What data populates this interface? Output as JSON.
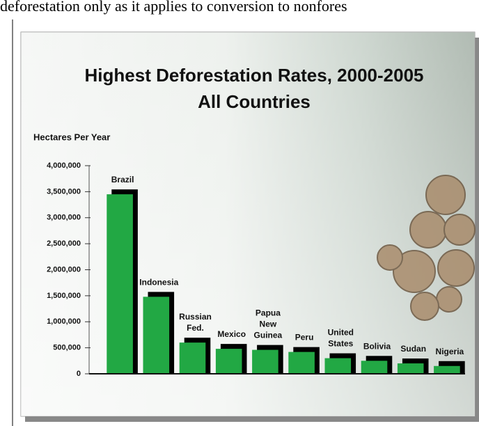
{
  "document": {
    "text_line": "deforestation only as it applies to conversion to nonfores"
  },
  "chart_data": {
    "type": "bar",
    "title": "Highest Deforestation Rates, 2000-2005",
    "subtitle": "All Countries",
    "y_label": "Hectares Per Year",
    "categories": [
      "Brazil",
      "Indonesia",
      "Russian Fed.",
      "Mexico",
      "Papua New Guinea",
      "Peru",
      "United States",
      "Bolivia",
      "Sudan",
      "Nigeria"
    ],
    "values": [
      3450000,
      1480000,
      600000,
      480000,
      460000,
      420000,
      300000,
      250000,
      200000,
      150000
    ],
    "color": "#22a844",
    "shadow_color": "#000000",
    "ylim": [
      0,
      4000000
    ],
    "yticks": [
      0,
      {
        "value": 500000,
        "label": "500,000"
      },
      {
        "value": 1000000,
        "label": "1,000,000"
      },
      {
        "value": 1500000,
        "label": "1,500,000"
      },
      {
        "value": 2000000,
        "label": "2,000,000"
      },
      {
        "value": 2500000,
        "label": "2,500,000"
      },
      {
        "value": 3000000,
        "label": "3,000,000"
      },
      {
        "value": 3500000,
        "label": "3,500,000"
      },
      {
        "value": 4000000,
        "label": "4,000,000"
      }
    ],
    "grid": false
  }
}
